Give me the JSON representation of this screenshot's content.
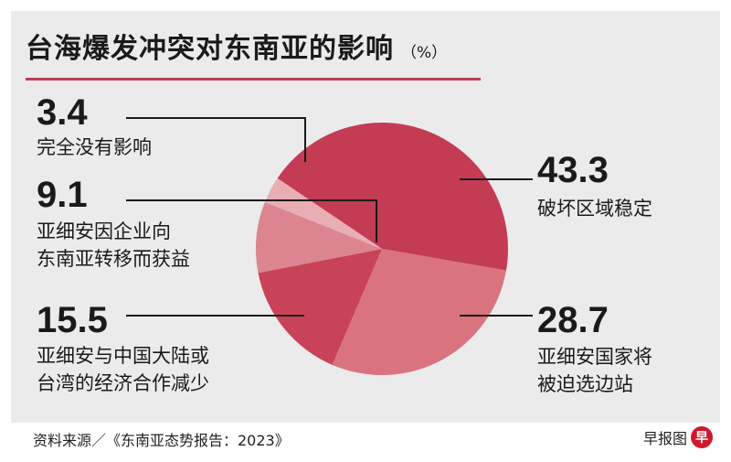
{
  "header": {
    "title": "台海爆发冲突对东南亚的影响",
    "unit": "（%）"
  },
  "chart_data": {
    "type": "pie",
    "title": "台海爆发冲突对东南亚的影响",
    "unit": "%",
    "slices": [
      {
        "label_lines": [
          "破坏区域稳定"
        ],
        "value": 43.3,
        "value_text": "43.3",
        "color": "#c43b54"
      },
      {
        "label_lines": [
          "亚细安国家将",
          "被迫选边站"
        ],
        "value": 28.7,
        "value_text": "28.7",
        "color": "#d9747f"
      },
      {
        "label_lines": [
          "亚细安与中国大陆或",
          "台湾的经济合作减少"
        ],
        "value": 15.5,
        "value_text": "15.5",
        "color": "#c94358"
      },
      {
        "label_lines": [
          "亚细安因企业向",
          "东南亚转移而获益"
        ],
        "value": 9.1,
        "value_text": "9.1",
        "color": "#dc8590"
      },
      {
        "label_lines": [
          "完全没有影响"
        ],
        "value": 3.4,
        "value_text": "3.4",
        "color": "#e8aeb4"
      }
    ]
  },
  "footer": {
    "source": "资料来源／《东南亚态势报告：2023》",
    "credit": "早报图",
    "badge": "早"
  }
}
